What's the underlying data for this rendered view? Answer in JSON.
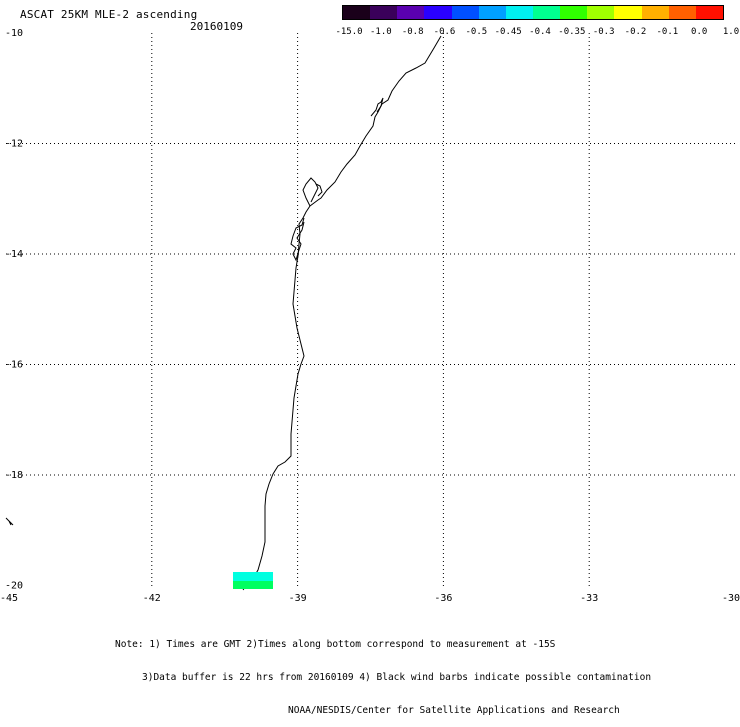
{
  "title": "ASCAT 25KM MLE-2 ascending",
  "date": "20160109",
  "colorbar": {
    "labels": [
      "-15.0",
      "-1.0",
      "-0.8",
      "-0.6",
      "-0.5",
      "-0.45",
      "-0.4",
      "-0.35",
      "-0.3",
      "-0.2",
      "-0.1",
      "0.0",
      "1.0"
    ],
    "colors": [
      "#1a001a",
      "#3a005a",
      "#5a00b0",
      "#2a00ff",
      "#0050ff",
      "#00a0ff",
      "#00f0f0",
      "#00ff90",
      "#30ff00",
      "#a0ff00",
      "#ffff00",
      "#ffb000",
      "#ff6000",
      "#ff1000"
    ]
  },
  "map": {
    "lon_ticks": [
      "-45",
      "-42",
      "-39",
      "-36",
      "-33",
      "-30"
    ],
    "lat_ticks": [
      "-10",
      "-12",
      "-14",
      "-16",
      "-18",
      "-20"
    ],
    "swath_colors": [
      "#00ffe0",
      "#00ff60"
    ]
  },
  "notes": {
    "line1": "Note: 1) Times are GMT 2)Times along bottom correspond to measurement at -15S",
    "line2": "3)Data buffer is 22 hrs from 20160109 4) Black wind barbs indicate possible contamination",
    "line3": "NOAA/NESDIS/Center for Satellite Applications and Research"
  }
}
